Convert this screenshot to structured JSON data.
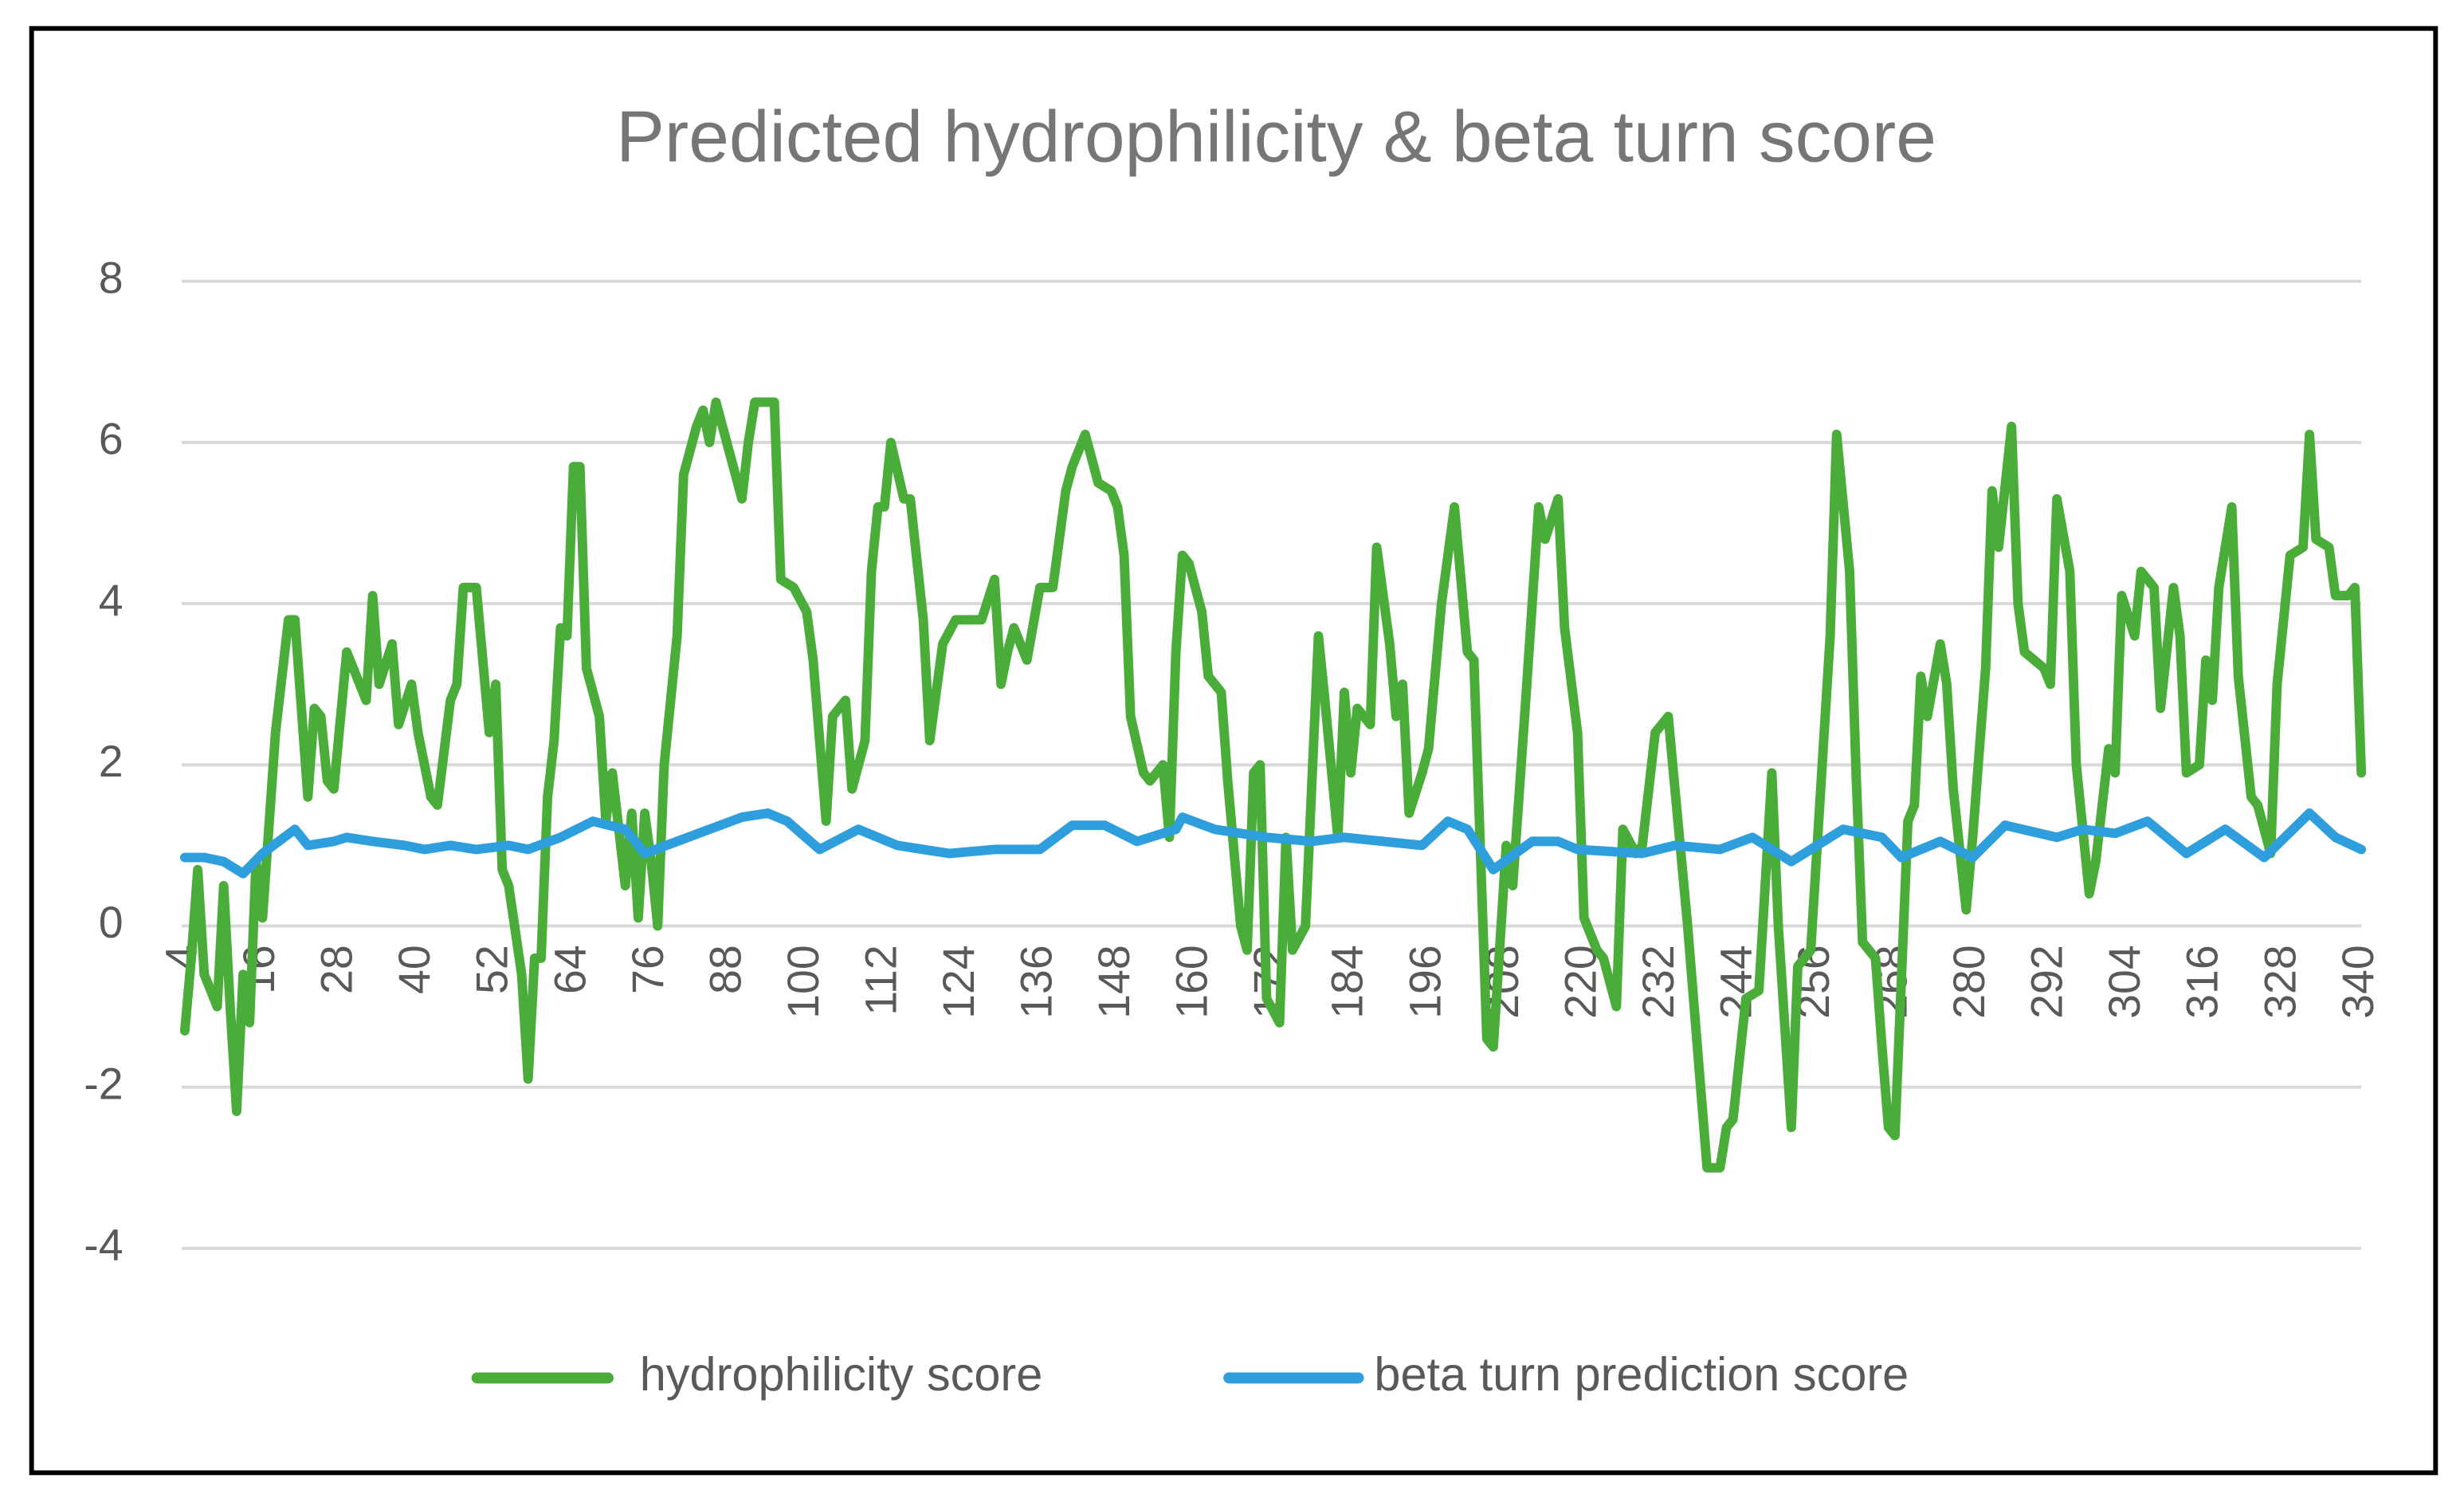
{
  "chart_data": {
    "type": "line",
    "title": "Predicted hydrophilicity & beta turn score",
    "xlim": [
      4,
      340
    ],
    "xticks": [
      4,
      16,
      28,
      40,
      52,
      64,
      76,
      88,
      100,
      112,
      124,
      136,
      148,
      160,
      172,
      184,
      196,
      208,
      220,
      232,
      244,
      256,
      268,
      280,
      292,
      304,
      316,
      328,
      340
    ],
    "ylim": [
      -4,
      8
    ],
    "yticks": [
      -4,
      -2,
      0,
      2,
      4,
      6,
      8
    ],
    "grid": true,
    "legend": "bottom",
    "series": [
      {
        "name": "hydrophilicity score",
        "color": "#4aad3a",
        "x": [
          4,
          5,
          6,
          7,
          9,
          10,
          11,
          12,
          13,
          14,
          15,
          16,
          18,
          20,
          21,
          23,
          24,
          25,
          26,
          27,
          29,
          31,
          32,
          33,
          34,
          36,
          37,
          39,
          40,
          42,
          43,
          45,
          46,
          47,
          49,
          51,
          52,
          53,
          54,
          56,
          57,
          58,
          59,
          60,
          61,
          62,
          63,
          64,
          65,
          66,
          68,
          69,
          70,
          72,
          73,
          74,
          75,
          76,
          77,
          78,
          80,
          81,
          83,
          84,
          85,
          86,
          88,
          90,
          91,
          92,
          95,
          96,
          98,
          100,
          101,
          103,
          104,
          106,
          107,
          109,
          110,
          111,
          112,
          113,
          115,
          116,
          118,
          119,
          121,
          123,
          127,
          129,
          130,
          131,
          132,
          134,
          136,
          138,
          140,
          141,
          143,
          145,
          147,
          148,
          149,
          150,
          152,
          153,
          155,
          156,
          157,
          158,
          159,
          161,
          162,
          164,
          165,
          167,
          168,
          169,
          170,
          171,
          173,
          174,
          175,
          177,
          179,
          180,
          182,
          183,
          184,
          185,
          187,
          188,
          190,
          191,
          192,
          193,
          195,
          196,
          198,
          200,
          202,
          203,
          205,
          206,
          208,
          209,
          211,
          213,
          214,
          216,
          217,
          219,
          220,
          222,
          223,
          225,
          226,
          228,
          229,
          231,
          232,
          233,
          236,
          237,
          239,
          241,
          242,
          243,
          245,
          247,
          249,
          250,
          252,
          253,
          255,
          256,
          258,
          259,
          261,
          262,
          263,
          265,
          266,
          267,
          268,
          270,
          271,
          272,
          273,
          275,
          276,
          277,
          279,
          280,
          282,
          283,
          284,
          286,
          287,
          288,
          291,
          292,
          293,
          295,
          296,
          298,
          299,
          301,
          302,
          303,
          305,
          306,
          308,
          309,
          311,
          312,
          313,
          315,
          316,
          317,
          318,
          320,
          321,
          323,
          324,
          326,
          327,
          329,
          331,
          332,
          333,
          335,
          336,
          338,
          339,
          340
        ],
        "values": [
          -1.3,
          -0.4,
          0.7,
          -0.6,
          -1.0,
          0.5,
          -1.0,
          -2.3,
          -0.6,
          -1.2,
          0.8,
          0.1,
          2.4,
          3.8,
          3.8,
          1.6,
          2.7,
          2.6,
          1.8,
          1.7,
          3.4,
          3.0,
          2.8,
          4.1,
          3.0,
          3.5,
          2.5,
          3.0,
          2.4,
          1.6,
          1.5,
          2.8,
          3.0,
          4.2,
          4.2,
          2.4,
          3.0,
          0.7,
          0.5,
          -0.6,
          -1.9,
          -0.4,
          -0.4,
          1.6,
          2.3,
          3.7,
          3.6,
          5.7,
          5.7,
          3.2,
          2.6,
          1.3,
          1.9,
          0.5,
          1.4,
          0.1,
          1.4,
          0.8,
          0.0,
          2.0,
          3.6,
          5.6,
          6.2,
          6.4,
          6.0,
          6.5,
          5.9,
          5.3,
          6.0,
          6.5,
          6.5,
          4.3,
          4.2,
          3.9,
          3.3,
          1.3,
          2.6,
          2.8,
          1.7,
          2.3,
          4.4,
          5.2,
          5.2,
          6.0,
          5.3,
          5.3,
          3.8,
          2.3,
          3.5,
          3.8,
          3.8,
          4.3,
          3.0,
          3.4,
          3.7,
          3.3,
          4.2,
          4.2,
          5.4,
          5.7,
          6.1,
          5.5,
          5.4,
          5.2,
          4.6,
          2.6,
          1.9,
          1.8,
          2.0,
          1.1,
          3.4,
          4.6,
          4.5,
          3.9,
          3.1,
          2.9,
          1.8,
          0.0,
          -0.3,
          1.9,
          2.0,
          -0.9,
          -1.2,
          1.1,
          -0.3,
          0.0,
          3.6,
          2.8,
          1.1,
          2.9,
          1.9,
          2.7,
          2.5,
          4.7,
          3.5,
          2.6,
          3.0,
          1.4,
          1.9,
          2.2,
          4.0,
          5.2,
          3.4,
          3.3,
          -1.4,
          -1.5,
          1.0,
          0.5,
          2.8,
          5.2,
          4.8,
          5.3,
          3.7,
          2.4,
          0.1,
          -0.3,
          -0.4,
          -1.0,
          1.2,
          0.9,
          1.0,
          2.4,
          2.5,
          2.6,
          0.0,
          -1.0,
          -3.0,
          -3.0,
          -2.5,
          -2.4,
          -0.9,
          -0.8,
          1.9,
          0.0,
          -2.5,
          -0.5,
          -0.3,
          1.0,
          3.6,
          6.1,
          4.4,
          1.9,
          -0.2,
          -0.4,
          -1.5,
          -2.5,
          -2.6,
          1.3,
          1.5,
          3.1,
          2.6,
          3.5,
          3.0,
          1.7,
          0.2,
          1.1,
          3.2,
          5.4,
          4.7,
          6.2,
          4.0,
          3.4,
          3.2,
          3.0,
          5.3,
          4.4,
          2.0,
          0.4,
          0.8,
          2.2,
          1.9,
          4.1,
          3.6,
          4.4,
          4.2,
          2.7,
          4.2,
          3.6,
          1.9,
          2.0,
          3.3,
          2.8,
          4.2,
          5.2,
          3.1,
          1.6,
          1.5,
          0.9,
          3.0,
          4.6,
          4.7,
          6.1,
          4.8,
          4.7,
          4.1,
          4.1,
          4.2,
          1.9
        ]
      },
      {
        "name": "beta turn prediction score",
        "color": "#2e9fdc",
        "x": [
          4,
          7,
          10,
          13,
          16,
          21,
          23,
          27,
          29,
          33,
          38,
          41,
          45,
          49,
          54,
          57,
          62,
          67,
          72,
          75,
          80,
          85,
          90,
          94,
          97,
          102,
          108,
          114,
          122,
          129,
          136,
          141,
          146,
          151,
          157,
          158,
          163,
          171,
          178,
          183,
          189,
          195,
          199,
          202,
          206,
          212,
          216,
          219,
          229,
          234,
          241,
          246,
          252,
          260,
          266,
          269,
          275,
          280,
          285,
          293,
          297,
          302,
          307,
          313,
          319,
          325,
          332,
          336,
          340
        ],
        "values": [
          0.85,
          0.85,
          0.8,
          0.65,
          0.9,
          1.2,
          1.0,
          1.05,
          1.1,
          1.05,
          1.0,
          0.95,
          1.0,
          0.95,
          1.0,
          0.95,
          1.1,
          1.3,
          1.2,
          0.9,
          1.05,
          1.2,
          1.35,
          1.4,
          1.3,
          0.95,
          1.2,
          1.0,
          0.9,
          0.95,
          0.95,
          1.25,
          1.25,
          1.05,
          1.2,
          1.35,
          1.2,
          1.1,
          1.05,
          1.1,
          1.05,
          1.0,
          1.3,
          1.2,
          0.7,
          1.05,
          1.05,
          0.95,
          0.9,
          1.0,
          0.95,
          1.1,
          0.8,
          1.2,
          1.1,
          0.85,
          1.05,
          0.85,
          1.25,
          1.1,
          1.2,
          1.15,
          1.3,
          0.9,
          1.2,
          0.85,
          1.4,
          1.1,
          0.95
        ]
      }
    ]
  }
}
